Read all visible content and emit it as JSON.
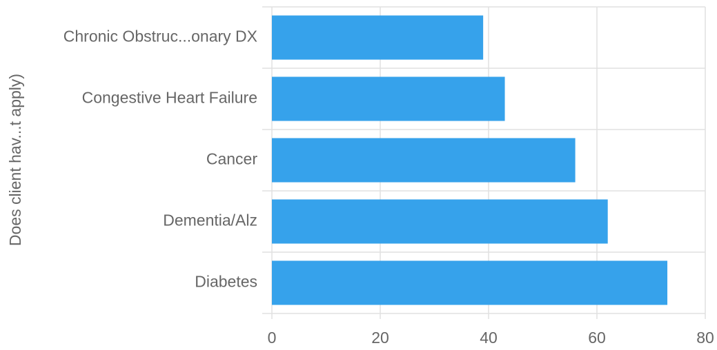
{
  "chart_data": {
    "type": "bar",
    "orientation": "horizontal",
    "y_axis_label": "Does client hav...t apply)",
    "categories": [
      "Chronic Obstruc...onary DX",
      "Congestive Heart Failure",
      "Cancer",
      "Dementia/Alz",
      "Diabetes"
    ],
    "values": [
      39,
      43,
      56,
      62,
      73
    ],
    "color": "#36a2eb",
    "xlim": [
      0,
      80
    ],
    "xticks": [
      0,
      20,
      40,
      60,
      80
    ],
    "grid": true
  }
}
